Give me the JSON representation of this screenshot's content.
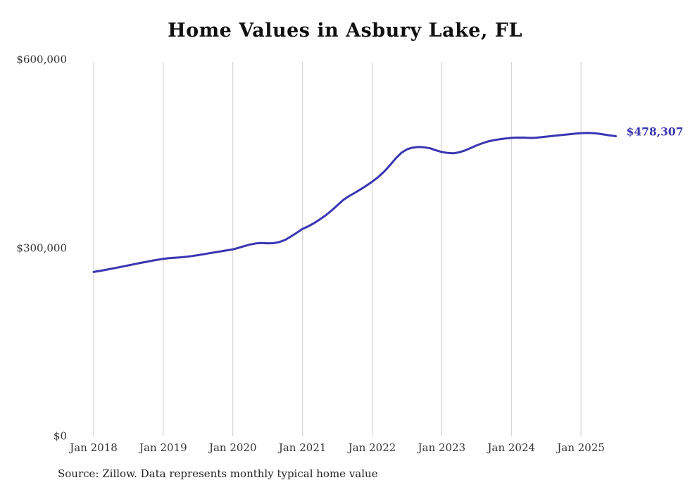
{
  "chart_data": {
    "type": "line",
    "title": "Home Values in Asbury Lake, FL",
    "source": "Source: Zillow. Data represents monthly typical home value",
    "end_label": "$478,307",
    "end_value": 478307,
    "line_color": "#3936b2",
    "grid_color": "#cccccc",
    "tick_color": "#333333",
    "ylim": [
      0,
      600000
    ],
    "grid": "vertical-only",
    "legend": "none",
    "y_ticks": [
      {
        "value": 0,
        "label": "$0"
      },
      {
        "value": 300000,
        "label": "$300,000"
      },
      {
        "value": 600000,
        "label": "$600,000"
      }
    ],
    "x_ticks": [
      {
        "month_index": 0,
        "label": "Jan 2018"
      },
      {
        "month_index": 12,
        "label": "Jan 2019"
      },
      {
        "month_index": 24,
        "label": "Jan 2020"
      },
      {
        "month_index": 36,
        "label": "Jan 2021"
      },
      {
        "month_index": 48,
        "label": "Jan 2022"
      },
      {
        "month_index": 60,
        "label": "Jan 2023"
      },
      {
        "month_index": 72,
        "label": "Jan 2024"
      },
      {
        "month_index": 84,
        "label": "Jan 2025"
      }
    ],
    "x": [
      "2018-01",
      "2018-02",
      "2018-03",
      "2018-04",
      "2018-05",
      "2018-06",
      "2018-07",
      "2018-08",
      "2018-09",
      "2018-10",
      "2018-11",
      "2018-12",
      "2019-01",
      "2019-02",
      "2019-03",
      "2019-04",
      "2019-05",
      "2019-06",
      "2019-07",
      "2019-08",
      "2019-09",
      "2019-10",
      "2019-11",
      "2019-12",
      "2020-01",
      "2020-02",
      "2020-03",
      "2020-04",
      "2020-05",
      "2020-06",
      "2020-07",
      "2020-08",
      "2020-09",
      "2020-10",
      "2020-11",
      "2020-12",
      "2021-01",
      "2021-02",
      "2021-03",
      "2021-04",
      "2021-05",
      "2021-06",
      "2021-07",
      "2021-08",
      "2021-09",
      "2021-10",
      "2021-11",
      "2021-12",
      "2022-01",
      "2022-02",
      "2022-03",
      "2022-04",
      "2022-05",
      "2022-06",
      "2022-07",
      "2022-08",
      "2022-09",
      "2022-10",
      "2022-11",
      "2022-12",
      "2023-01",
      "2023-02",
      "2023-03",
      "2023-04",
      "2023-05",
      "2023-06",
      "2023-07",
      "2023-08",
      "2023-09",
      "2023-10",
      "2023-11",
      "2023-12",
      "2024-01",
      "2024-02",
      "2024-03",
      "2024-04",
      "2024-05",
      "2024-06",
      "2024-07",
      "2024-08",
      "2024-09",
      "2024-10",
      "2024-11",
      "2024-12",
      "2025-01",
      "2025-02",
      "2025-03",
      "2025-04",
      "2025-05",
      "2025-06",
      "2025-07"
    ],
    "values": [
      262000,
      263500,
      265200,
      267000,
      268800,
      270600,
      272500,
      274400,
      276300,
      278000,
      279800,
      281400,
      283000,
      284000,
      284700,
      285300,
      286200,
      287400,
      288800,
      290300,
      291900,
      293400,
      295000,
      296500,
      298000,
      300500,
      303200,
      305800,
      307500,
      308200,
      307600,
      307800,
      309600,
      313000,
      318500,
      324500,
      330500,
      334800,
      339800,
      345800,
      352300,
      359800,
      368200,
      376500,
      382800,
      388000,
      393500,
      399500,
      405800,
      412800,
      421200,
      431200,
      442200,
      451500,
      457500,
      460200,
      461200,
      460600,
      459000,
      455800,
      453200,
      451600,
      451100,
      452600,
      455600,
      459600,
      463600,
      467100,
      470000,
      472000,
      473500,
      474600,
      475600,
      476100,
      476100,
      475600,
      475600,
      476600,
      477600,
      478600,
      479600,
      480600,
      481500,
      482400,
      483000,
      483500,
      483200,
      482300,
      481000,
      479600,
      478307
    ]
  }
}
